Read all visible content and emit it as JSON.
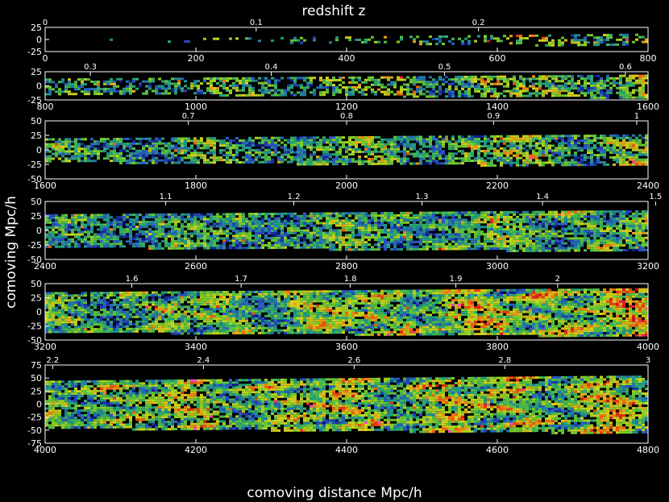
{
  "chart_data": {
    "type": "heatmap",
    "title": "redshift z",
    "xlabel": "comoving distance Mpc/h",
    "ylabel": "comoving Mpc/h",
    "grid": false,
    "colormap": [
      "#0a0a6e",
      "#2a55c8",
      "#1fa07a",
      "#6cc92a",
      "#d8d21c",
      "#ee6a10",
      "#d10e0e",
      "#ff4ad0"
    ],
    "panels": [
      {
        "xlim": [
          0,
          800
        ],
        "ylim": [
          -25,
          25
        ],
        "x_ticks": [
          0,
          200,
          400,
          600,
          800
        ],
        "y_ticks": [
          25,
          0,
          -25
        ],
        "z_ticks": [
          {
            "x": 0,
            "label": "0"
          },
          {
            "x": 280,
            "label": "0.1"
          },
          {
            "x": 575,
            "label": "0.2"
          }
        ],
        "slab_half_width": [
          0.5,
          12.5
        ],
        "density": [
          0.08,
          0.55
        ],
        "heat": [
          0.45,
          0.7
        ]
      },
      {
        "xlim": [
          800,
          1600
        ],
        "ylim": [
          -25,
          25
        ],
        "x_ticks": [
          800,
          1000,
          1200,
          1400,
          1600
        ],
        "y_ticks": [
          25,
          0,
          -25
        ],
        "z_ticks": [
          {
            "x": 860,
            "label": "0.3"
          },
          {
            "x": 1100,
            "label": "0.4"
          },
          {
            "x": 1330,
            "label": "0.5"
          },
          {
            "x": 1570,
            "label": "0.6"
          }
        ],
        "slab_half_width": [
          13,
          20
        ],
        "density": [
          0.55,
          0.72
        ],
        "heat": [
          0.45,
          0.68
        ]
      },
      {
        "xlim": [
          1600,
          2400
        ],
        "ylim": [
          -50,
          50
        ],
        "x_ticks": [
          1600,
          1800,
          2000,
          2200,
          2400
        ],
        "y_ticks": [
          50,
          25,
          0,
          -25,
          -50
        ],
        "z_ticks": [
          {
            "x": 1790,
            "label": "0.7"
          },
          {
            "x": 2000,
            "label": "0.8"
          },
          {
            "x": 2195,
            "label": "0.9"
          },
          {
            "x": 2385,
            "label": "1"
          }
        ],
        "slab_half_width": [
          20,
          27
        ],
        "density": [
          0.72,
          0.8
        ],
        "heat": [
          0.45,
          0.62
        ]
      },
      {
        "xlim": [
          2400,
          3200
        ],
        "ylim": [
          -50,
          50
        ],
        "x_ticks": [
          2400,
          2600,
          2800,
          3000,
          3200
        ],
        "y_ticks": [
          50,
          25,
          0,
          -25,
          -50
        ],
        "z_ticks": [
          {
            "x": 2560,
            "label": "1.1"
          },
          {
            "x": 2730,
            "label": "1.2"
          },
          {
            "x": 2900,
            "label": "1.3"
          },
          {
            "x": 3060,
            "label": "1.4"
          },
          {
            "x": 3210,
            "label": "1.5"
          }
        ],
        "slab_half_width": [
          28,
          35
        ],
        "density": [
          0.8,
          0.86
        ],
        "heat": [
          0.42,
          0.58
        ]
      },
      {
        "xlim": [
          3200,
          4000
        ],
        "ylim": [
          -50,
          50
        ],
        "x_ticks": [
          3200,
          3400,
          3600,
          3800,
          4000
        ],
        "y_ticks": [
          50,
          25,
          0,
          -25,
          -50
        ],
        "z_ticks": [
          {
            "x": 3315,
            "label": "1.6"
          },
          {
            "x": 3460,
            "label": "1.7"
          },
          {
            "x": 3605,
            "label": "1.8"
          },
          {
            "x": 3745,
            "label": "1.9"
          },
          {
            "x": 3880,
            "label": "2"
          }
        ],
        "slab_half_width": [
          35,
          42
        ],
        "density": [
          0.86,
          0.9
        ],
        "heat": [
          0.5,
          0.78
        ]
      },
      {
        "xlim": [
          4000,
          4800
        ],
        "ylim": [
          -75,
          75
        ],
        "x_ticks": [
          4000,
          4200,
          4400,
          4600,
          4800
        ],
        "y_ticks": [
          75,
          50,
          25,
          0,
          -25,
          -50,
          -75
        ],
        "z_ticks": [
          {
            "x": 4010,
            "label": "2.2"
          },
          {
            "x": 4210,
            "label": "2.4"
          },
          {
            "x": 4410,
            "label": "2.6"
          },
          {
            "x": 4610,
            "label": "2.8"
          },
          {
            "x": 4800,
            "label": "3"
          }
        ],
        "slab_half_width": [
          45,
          55
        ],
        "density": [
          0.85,
          0.85
        ],
        "heat": [
          0.62,
          0.72
        ]
      }
    ]
  }
}
